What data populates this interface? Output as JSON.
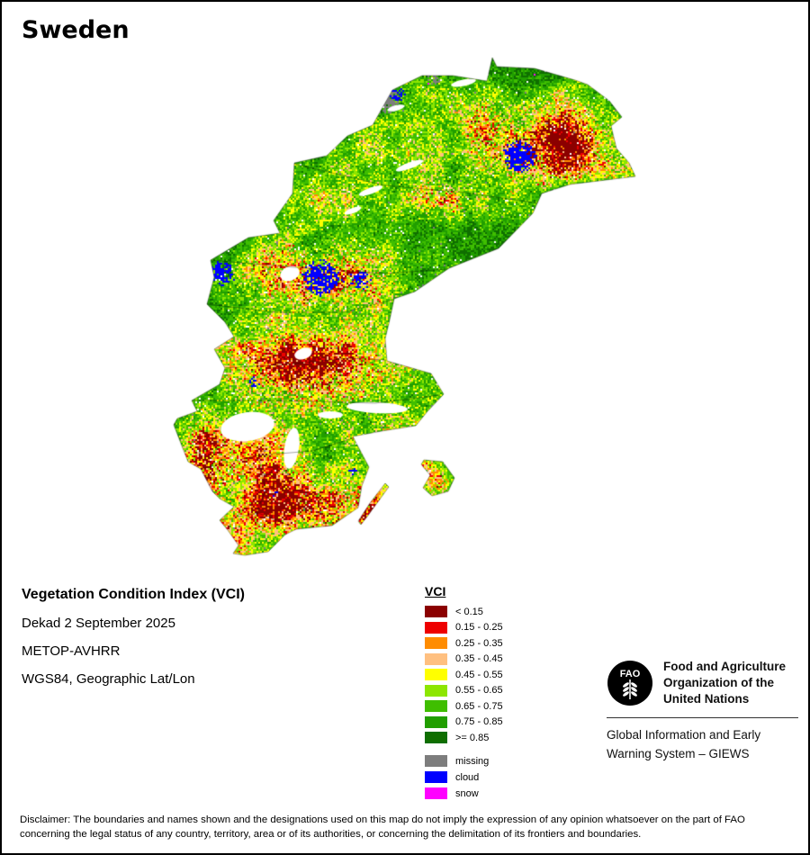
{
  "page": {
    "title": "Sweden"
  },
  "info": {
    "heading": "Vegetation Condition Index (VCI)",
    "dekad": "Dekad 2 September 2025",
    "sensor": "METOP-AVHRR",
    "projection": "WGS84, Geographic Lat/Lon"
  },
  "legend": {
    "title": "VCI",
    "classes": [
      {
        "label": "< 0.15",
        "color": "#8b0000"
      },
      {
        "label": "0.15 - 0.25",
        "color": "#ee0000"
      },
      {
        "label": "0.25 - 0.35",
        "color": "#ff8c00"
      },
      {
        "label": "0.35 - 0.45",
        "color": "#ffc080"
      },
      {
        "label": "0.45 - 0.55",
        "color": "#ffff00"
      },
      {
        "label": "0.55 - 0.65",
        "color": "#8de600"
      },
      {
        "label": "0.65 - 0.75",
        "color": "#3fbe00"
      },
      {
        "label": "0.75 - 0.85",
        "color": "#219e00"
      },
      {
        "label": ">= 0.85",
        "color": "#0f6e00"
      }
    ],
    "flags": [
      {
        "label": "missing",
        "color": "#7d7d7d"
      },
      {
        "label": "cloud",
        "color": "#0000ff"
      },
      {
        "label": "snow",
        "color": "#ff00ff"
      }
    ]
  },
  "footer": {
    "fao_name": "Food and Agriculture Organization of the United Nations",
    "giews": "Global Information and Early Warning System – GIEWS",
    "disclaimer": "Disclaimer: The boundaries and names shown and the designations used on this map do not imply the expression of any opinion whatsoever on the part of FAO concerning the legal status of any country, territory, area or of its authorities, or concerning the delimitation of its frontiers and boundaries."
  }
}
